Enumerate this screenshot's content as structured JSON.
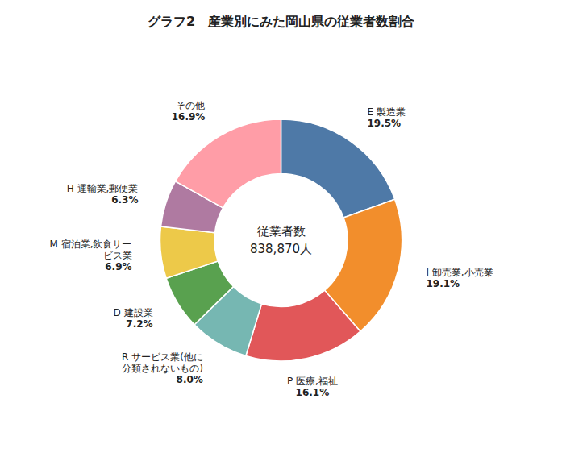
{
  "chart_data": {
    "type": "donut",
    "title": "グラフ2　産業別にみた岡山県の従業者数割合",
    "annotations": [
      "従業者数",
      "838,870人"
    ],
    "categories": [
      "E 製造業",
      "I 卸売業,小売業",
      "P 医療,福祉",
      "R サービス業(他に分類されないもの)",
      "D 建設業",
      "M 宿泊業,飲食サービス業",
      "H 運輸業,郵便業",
      "その他"
    ],
    "values": [
      19.5,
      19.1,
      16.1,
      8.0,
      7.2,
      6.9,
      6.3,
      16.9
    ],
    "value_labels": [
      "19.5%",
      "19.1%",
      "16.1%",
      "8.0%",
      "7.2%",
      "6.9%",
      "6.3%",
      "16.9%"
    ],
    "data_labels": true
  }
}
